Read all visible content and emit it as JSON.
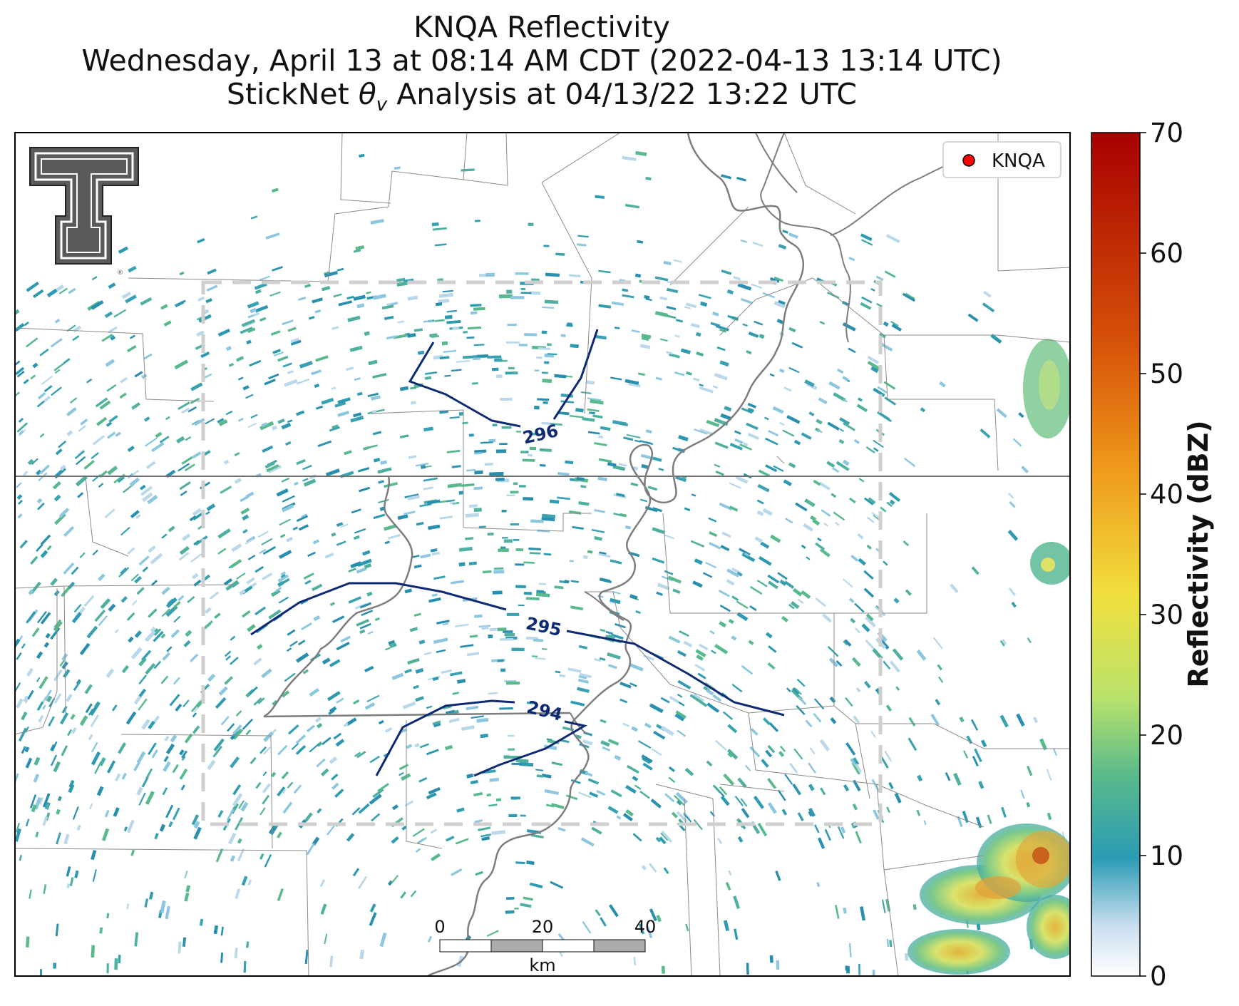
{
  "title": {
    "line1": "KNQA Reflectivity",
    "line2": "Wednesday, April 13 at 08:14 AM CDT (2022-04-13 13:14 UTC)",
    "line3_prefix": "StickNet ",
    "line3_symbol": "θ",
    "line3_sub": "v",
    "line3_suffix": " Analysis at 04/13/22 13:22 UTC"
  },
  "legend": {
    "label": "KNQA",
    "marker_color": "#ff0000"
  },
  "logo": {
    "name": "Texas Tech double-T logo",
    "mark": "®"
  },
  "contours": [
    {
      "label": "296"
    },
    {
      "label": "295"
    },
    {
      "label": "294"
    }
  ],
  "scale_bar": {
    "ticks": [
      "0",
      "20",
      "40"
    ],
    "unit": "km"
  },
  "colorbar": {
    "label": "Reflectivity (dBZ)",
    "ticks": [
      "0",
      "10",
      "20",
      "30",
      "40",
      "50",
      "60",
      "70"
    ],
    "min": 0,
    "max": 70,
    "colors": [
      "#ffffff",
      "#b9d3ea",
      "#2a9bb4",
      "#5bbb8a",
      "#b9e26b",
      "#f0df3f",
      "#ef9a1c",
      "#d65209",
      "#a80000"
    ]
  },
  "colors": {
    "contour": "#0d2a73",
    "echo_light": "#2e9ab2",
    "echo_mid": "#58b98d",
    "echo_strong": "#e7dc45",
    "echo_core": "#d9641a",
    "domain_box": "#cfcfcf",
    "state_border": "#707070",
    "county_lines": "#8a8a8a",
    "river": "#7a7a7a"
  }
}
